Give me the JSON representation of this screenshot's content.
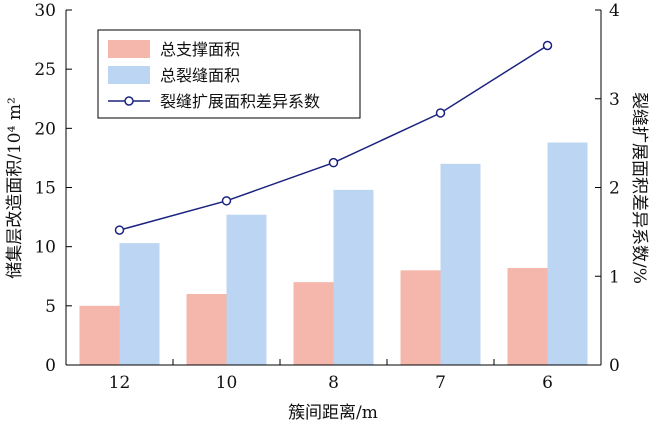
{
  "chart_data": {
    "type": "bar",
    "categories": [
      "12",
      "10",
      "8",
      "7",
      "6"
    ],
    "series": [
      {
        "name": "总支撑面积",
        "kind": "bar",
        "axis": "left",
        "color": "#f5b7ab",
        "values": [
          5.0,
          6.0,
          7.0,
          8.0,
          8.2
        ]
      },
      {
        "name": "总裂缝面积",
        "kind": "bar",
        "axis": "left",
        "color": "#bcd5f2",
        "values": [
          10.3,
          12.7,
          14.8,
          17.0,
          18.8
        ]
      },
      {
        "name": "裂缝扩展面积差异系数",
        "kind": "line",
        "axis": "right",
        "color": "#1a237e",
        "marker": "open-circle",
        "values": [
          1.52,
          1.85,
          2.28,
          2.84,
          3.6
        ]
      }
    ],
    "xlabel": "簇间距离/m",
    "ylabel": "储集层改造面积/10⁴ m²",
    "y2label": "裂缝扩展面积差异系数/%",
    "ylim": [
      0,
      30
    ],
    "y2lim": [
      0,
      4
    ],
    "yticks": [
      0,
      5,
      10,
      15,
      20,
      25,
      30
    ],
    "y2ticks": [
      0,
      1,
      2,
      3,
      4
    ],
    "grid": false,
    "legend_position": "top-left"
  }
}
